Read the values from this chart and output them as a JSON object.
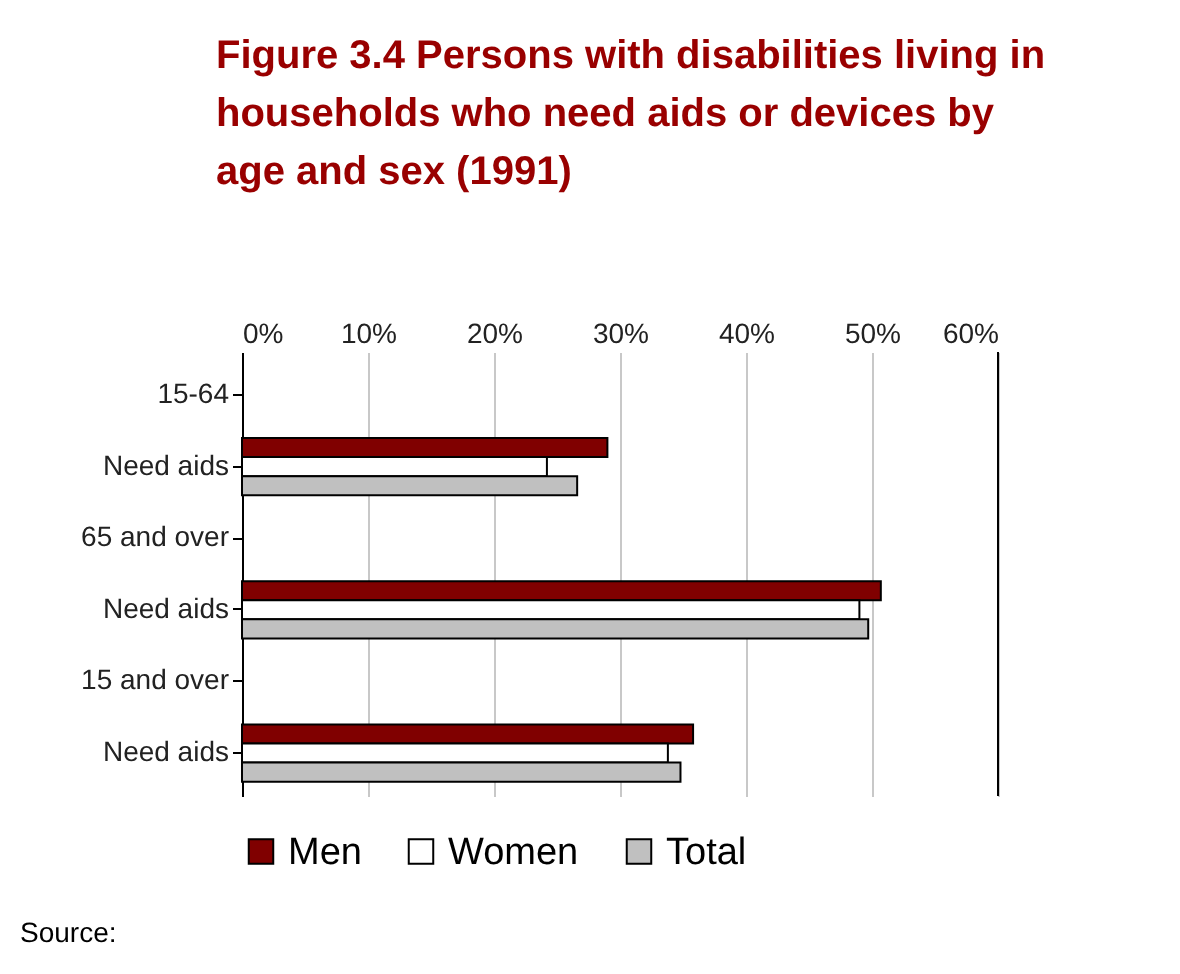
{
  "chart_data": {
    "type": "bar",
    "orientation": "horizontal",
    "title": "Figure 3.4 Persons with disabilities living in households who need aids or devices by age and sex   (1991)",
    "categories": [
      "15-64",
      "Need aids",
      "65 and over",
      "Need aids",
      "15 and over",
      "Need aids"
    ],
    "series": [
      {
        "name": "Men",
        "color": "#800000",
        "values": [
          null,
          29.0,
          null,
          50.7,
          null,
          35.8
        ]
      },
      {
        "name": "Women",
        "color": "#ffffff",
        "values": [
          null,
          24.2,
          null,
          49.0,
          null,
          33.8
        ]
      },
      {
        "name": "Total",
        "color": "#c0c0c0",
        "values": [
          null,
          26.6,
          null,
          49.7,
          null,
          34.8
        ]
      }
    ],
    "xlim": [
      0,
      60
    ],
    "xticks": [
      {
        "value": 0,
        "label": "0%"
      },
      {
        "value": 10,
        "label": "10%"
      },
      {
        "value": 20,
        "label": "20%"
      },
      {
        "value": 30,
        "label": "30%"
      },
      {
        "value": 40,
        "label": "40%"
      },
      {
        "value": 50,
        "label": "50%"
      },
      {
        "value": 60,
        "label": "60%"
      }
    ],
    "grid": "x",
    "legend": "bottom",
    "annotations": [
      "Source:"
    ]
  }
}
